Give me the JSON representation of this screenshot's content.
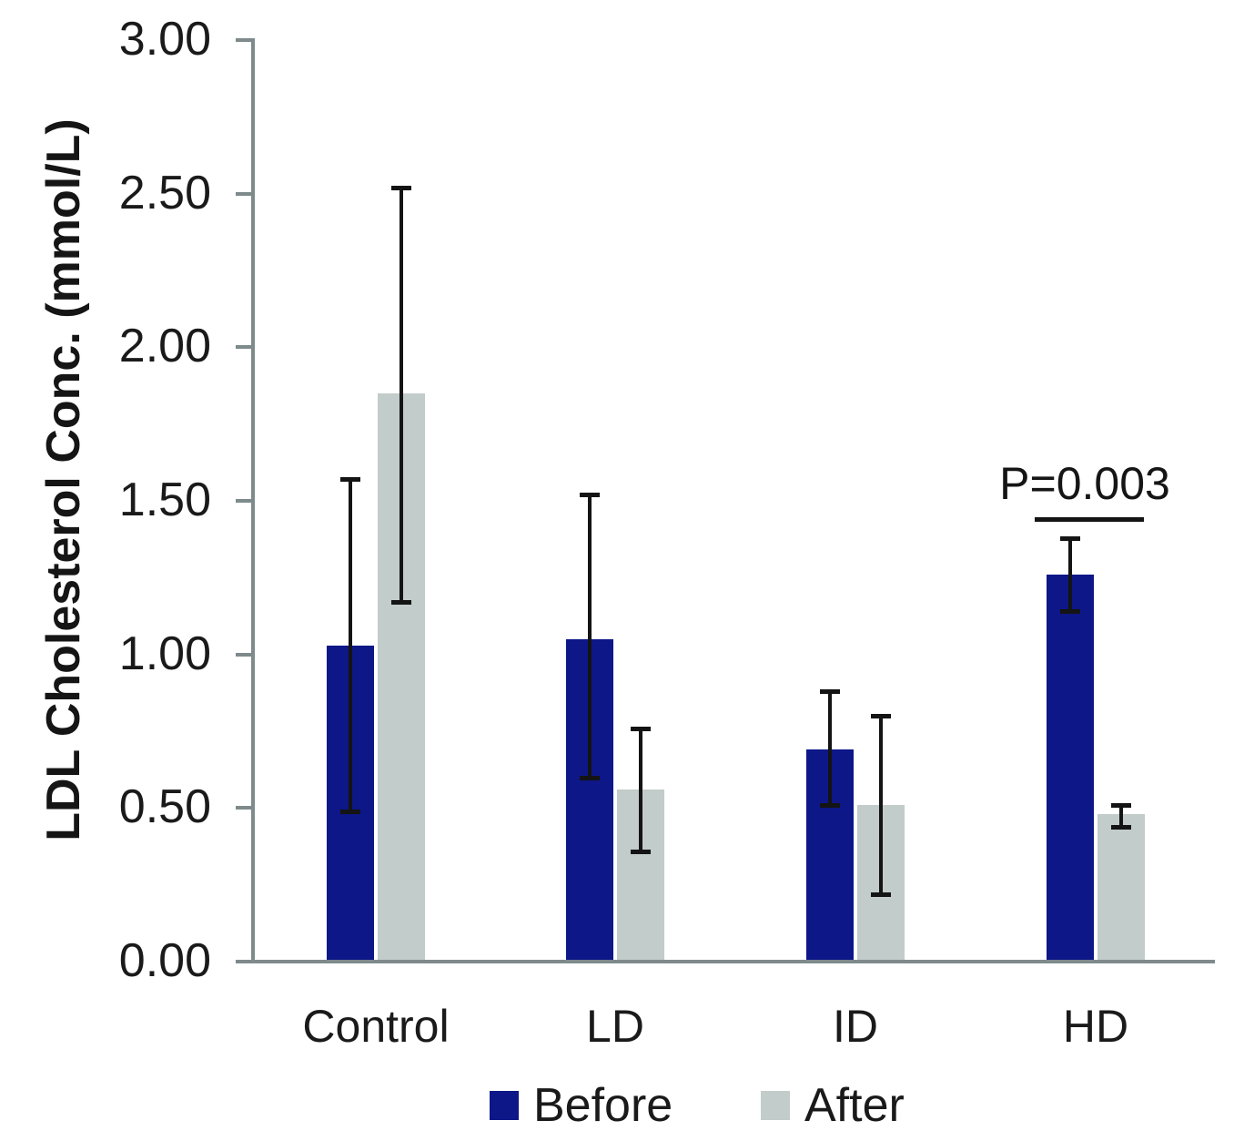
{
  "figure": {
    "background": "#ffffff"
  },
  "chart_data": {
    "type": "bar",
    "title": "",
    "ylabel": "LDL Cholesterol Conc. (mmol/L)",
    "xlabel": "",
    "categories": [
      "Control",
      "LD",
      "ID",
      "HD"
    ],
    "series": [
      {
        "name": "Before",
        "color": "#0d1787",
        "values": [
          1.03,
          1.05,
          0.69,
          1.26
        ],
        "error_low": [
          0.49,
          0.6,
          0.51,
          1.14
        ],
        "error_high": [
          1.57,
          1.52,
          0.88,
          1.38
        ]
      },
      {
        "name": "After",
        "color": "#c2ccca",
        "values": [
          1.85,
          0.56,
          0.51,
          0.48
        ],
        "error_low": [
          1.17,
          0.36,
          0.22,
          0.44
        ],
        "error_high": [
          2.52,
          0.76,
          0.8,
          0.51
        ]
      }
    ],
    "ylim": [
      0,
      3.0
    ],
    "ytick_step": 0.5,
    "y_tick_labels": [
      "0.00",
      "0.50",
      "1.00",
      "1.50",
      "2.00",
      "2.50",
      "3.00"
    ],
    "grid": false,
    "legend_position": "bottom",
    "error_bars": true,
    "axis_color": "#7e8a8b",
    "error_bar_color": "#141414",
    "annotation": {
      "text": "P=0.003",
      "target_group": "HD",
      "style": "horizontal-line-over-pair"
    }
  }
}
